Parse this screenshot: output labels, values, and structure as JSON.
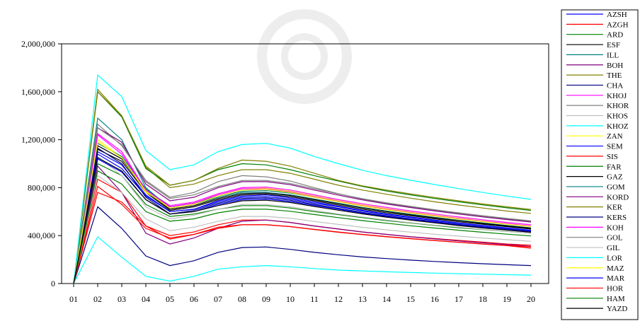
{
  "chart_data": {
    "type": "line",
    "title": "",
    "xlabel": "",
    "ylabel": "",
    "x": [
      "01",
      "02",
      "03",
      "04",
      "05",
      "06",
      "07",
      "08",
      "09",
      "10",
      "11",
      "12",
      "13",
      "14",
      "15",
      "16",
      "17",
      "18",
      "19",
      "20"
    ],
    "ylim": [
      0,
      2000000
    ],
    "yticks": [
      0,
      400000,
      800000,
      1200000,
      1600000,
      2000000
    ],
    "ytick_labels": [
      "0",
      "400,000",
      "800,000",
      "1,200,000",
      "1,600,000",
      "2,000,000"
    ],
    "grid": false,
    "legend_position": "right",
    "series": [
      {
        "name": "AZSH",
        "color": "#0000ff",
        "values": [
          0,
          1100000,
          990000,
          740000,
          600000,
          620000,
          690000,
          730000,
          740000,
          715000,
          680000,
          645000,
          610000,
          580000,
          555000,
          530000,
          505000,
          485000,
          465000,
          445000
        ]
      },
      {
        "name": "AZGH",
        "color": "#ff0000",
        "values": [
          0,
          870000,
          760000,
          480000,
          400000,
          430000,
          490000,
          530000,
          530000,
          510000,
          480000,
          455000,
          430000,
          410000,
          390000,
          375000,
          360000,
          345000,
          330000,
          320000
        ]
      },
      {
        "name": "ARD",
        "color": "#008000",
        "values": [
          0,
          1000000,
          900000,
          660000,
          560000,
          580000,
          620000,
          650000,
          650000,
          630000,
          600000,
          575000,
          550000,
          525000,
          505000,
          485000,
          465000,
          450000,
          435000,
          420000
        ]
      },
      {
        "name": "ESF",
        "color": "#000000",
        "values": [
          0,
          1120000,
          1020000,
          760000,
          610000,
          640000,
          700000,
          740000,
          745000,
          725000,
          690000,
          655000,
          620000,
          590000,
          565000,
          540000,
          515000,
          495000,
          475000,
          455000
        ]
      },
      {
        "name": "ILL",
        "color": "#008080",
        "values": [
          0,
          1380000,
          1200000,
          800000,
          630000,
          660000,
          720000,
          760000,
          760000,
          740000,
          705000,
          670000,
          635000,
          605000,
          578000,
          552000,
          528000,
          506000,
          485000,
          465000
        ]
      },
      {
        "name": "BOH",
        "color": "#800080",
        "values": [
          0,
          980000,
          760000,
          420000,
          330000,
          380000,
          460000,
          520000,
          530000,
          510000,
          480000,
          455000,
          430000,
          410000,
          390000,
          372000,
          355000,
          340000,
          325000,
          310000
        ]
      },
      {
        "name": "THE",
        "color": "#808000",
        "values": [
          0,
          1620000,
          1400000,
          970000,
          800000,
          830000,
          900000,
          950000,
          950000,
          920000,
          870000,
          820000,
          780000,
          745000,
          712000,
          682000,
          655000,
          630000,
          605000,
          585000
        ]
      },
      {
        "name": "CHA",
        "color": "#000080",
        "values": [
          0,
          640000,
          460000,
          230000,
          150000,
          190000,
          260000,
          300000,
          305000,
          285000,
          260000,
          240000,
          222000,
          208000,
          195000,
          184000,
          174000,
          165000,
          157000,
          150000
        ]
      },
      {
        "name": "KHOJ",
        "color": "#ff00ff",
        "values": [
          0,
          1250000,
          1100000,
          780000,
          650000,
          680000,
          750000,
          800000,
          805000,
          780000,
          740000,
          700000,
          665000,
          635000,
          605000,
          580000,
          555000,
          532000,
          510000,
          490000
        ]
      },
      {
        "name": "KHOR",
        "color": "#808080",
        "values": [
          0,
          1330000,
          1150000,
          860000,
          720000,
          760000,
          850000,
          900000,
          890000,
          855000,
          800000,
          750000,
          705000,
          670000,
          640000,
          612000,
          586000,
          562000,
          540000,
          520000
        ]
      },
      {
        "name": "KHOS",
        "color": "#c0c0c0",
        "values": [
          0,
          1060000,
          900000,
          640000,
          540000,
          570000,
          620000,
          660000,
          660000,
          640000,
          610000,
          580000,
          555000,
          530000,
          508000,
          488000,
          470000,
          452000,
          436000,
          420000
        ]
      },
      {
        "name": "KHOZ",
        "color": "#00ffff",
        "values": [
          0,
          390000,
          220000,
          60000,
          20000,
          60000,
          120000,
          140000,
          150000,
          140000,
          125000,
          112000,
          105000,
          98000,
          92000,
          87000,
          82000,
          78000,
          74000,
          70000
        ]
      },
      {
        "name": "ZAN",
        "color": "#ffff00",
        "values": [
          0,
          1200000,
          1050000,
          760000,
          640000,
          670000,
          740000,
          790000,
          795000,
          770000,
          730000,
          690000,
          655000,
          625000,
          595000,
          570000,
          545000,
          522000,
          500000,
          480000
        ]
      },
      {
        "name": "SEM",
        "color": "#0000ff",
        "values": [
          0,
          1080000,
          960000,
          730000,
          600000,
          620000,
          680000,
          720000,
          725000,
          705000,
          670000,
          640000,
          605000,
          575000,
          550000,
          525000,
          502000,
          482000,
          462000,
          443000
        ]
      },
      {
        "name": "SIS",
        "color": "#ff0000",
        "values": [
          0,
          810000,
          660000,
          460000,
          380000,
          410000,
          460000,
          490000,
          490000,
          475000,
          450000,
          428000,
          408000,
          390000,
          374000,
          358000,
          344000,
          330000,
          318000,
          306000
        ]
      },
      {
        "name": "FAR",
        "color": "#008000",
        "values": [
          0,
          1600000,
          1390000,
          960000,
          820000,
          860000,
          950000,
          1000000,
          990000,
          950000,
          900000,
          855000,
          810000,
          772000,
          740000,
          710000,
          682000,
          656000,
          632000,
          610000
        ]
      },
      {
        "name": "GAZ",
        "color": "#000000",
        "values": [
          0,
          1150000,
          1040000,
          770000,
          620000,
          650000,
          710000,
          750000,
          755000,
          735000,
          700000,
          665000,
          630000,
          600000,
          573000,
          548000,
          524000,
          502000,
          481000,
          461000
        ]
      },
      {
        "name": "GOM",
        "color": "#008080",
        "values": [
          0,
          1170000,
          1060000,
          790000,
          640000,
          670000,
          730000,
          770000,
          775000,
          755000,
          720000,
          684000,
          648000,
          618000,
          590000,
          564000,
          540000,
          518000,
          497000,
          477000
        ]
      },
      {
        "name": "KORD",
        "color": "#800080",
        "values": [
          0,
          1300000,
          1180000,
          830000,
          690000,
          720000,
          800000,
          850000,
          850000,
          825000,
          780000,
          738000,
          698000,
          664000,
          634000,
          606000,
          580000,
          556000,
          534000,
          513000
        ]
      },
      {
        "name": "KER",
        "color": "#808000",
        "values": [
          0,
          1600000,
          1400000,
          980000,
          820000,
          860000,
          960000,
          1030000,
          1020000,
          980000,
          920000,
          860000,
          815000,
          780000,
          748000,
          718000,
          690000,
          664000,
          640000,
          618000
        ]
      },
      {
        "name": "KERS",
        "color": "#000080",
        "values": [
          0,
          1130000,
          1000000,
          720000,
          580000,
          610000,
          670000,
          710000,
          715000,
          695000,
          660000,
          628000,
          594000,
          566000,
          540000,
          516000,
          494000,
          474000,
          454000,
          436000
        ]
      },
      {
        "name": "KOH",
        "color": "#ff00ff",
        "values": [
          0,
          1240000,
          1080000,
          780000,
          640000,
          670000,
          740000,
          790000,
          790000,
          765000,
          725000,
          686000,
          650000,
          620000,
          592000,
          566000,
          542000,
          520000,
          499000,
          479000
        ]
      },
      {
        "name": "GOL",
        "color": "#808080",
        "values": [
          0,
          1300000,
          1160000,
          850000,
          710000,
          740000,
          810000,
          860000,
          860000,
          835000,
          790000,
          748000,
          708000,
          674000,
          644000,
          616000,
          590000,
          566000,
          544000,
          523000
        ]
      },
      {
        "name": "GIL",
        "color": "#c0c0c0",
        "values": [
          0,
          900000,
          760000,
          540000,
          440000,
          470000,
          520000,
          560000,
          560000,
          545000,
          518000,
          493000,
          469000,
          448000,
          429000,
          411000,
          395000,
          380000,
          366000,
          352000
        ]
      },
      {
        "name": "LOR",
        "color": "#00ffff",
        "values": [
          0,
          1740000,
          1560000,
          1110000,
          950000,
          990000,
          1100000,
          1160000,
          1170000,
          1130000,
          1060000,
          1000000,
          945000,
          900000,
          862000,
          826000,
          792000,
          760000,
          730000,
          702000
        ]
      },
      {
        "name": "MAZ",
        "color": "#ffff00",
        "values": [
          0,
          1180000,
          1050000,
          770000,
          630000,
          660000,
          730000,
          780000,
          785000,
          760000,
          720000,
          682000,
          646000,
          616000,
          588000,
          562000,
          538000,
          516000,
          495000,
          475000
        ]
      },
      {
        "name": "MAR",
        "color": "#0000ff",
        "values": [
          0,
          1040000,
          930000,
          700000,
          580000,
          600000,
          660000,
          700000,
          705000,
          685000,
          652000,
          620000,
          588000,
          560000,
          535000,
          511000,
          489000,
          469000,
          450000,
          432000
        ]
      },
      {
        "name": "HOR",
        "color": "#ff0000",
        "values": [
          0,
          760000,
          680000,
          480000,
          370000,
          410000,
          470000,
          490000,
          490000,
          475000,
          452000,
          430000,
          410000,
          392000,
          375000,
          359000,
          344000,
          330000,
          316000,
          295000
        ]
      },
      {
        "name": "HAM",
        "color": "#008000",
        "values": [
          0,
          940000,
          830000,
          600000,
          520000,
          540000,
          590000,
          620000,
          620000,
          603000,
          576000,
          550000,
          525000,
          503000,
          482000,
          463000,
          445000,
          428000,
          412000,
          397000
        ]
      },
      {
        "name": "YAZD",
        "color": "#000000",
        "values": [
          0,
          1050000,
          940000,
          700000,
          580000,
          600000,
          650000,
          690000,
          695000,
          676000,
          643000,
          612000,
          581000,
          554000,
          529000,
          506000,
          484000,
          464000,
          446000,
          428000
        ]
      }
    ]
  }
}
